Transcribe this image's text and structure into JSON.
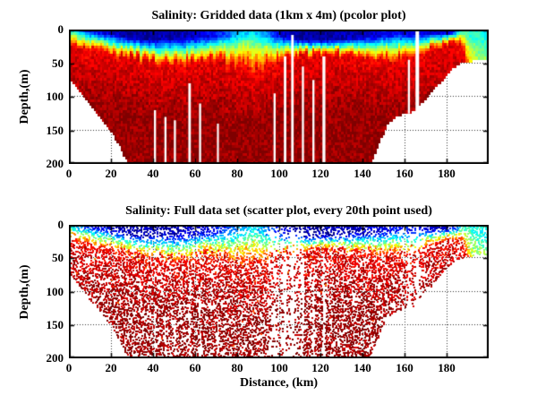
{
  "figure": {
    "background": "#ffffff",
    "axis_color": "#000000",
    "grid_style": "dotted",
    "colormap": "jet",
    "colormap_anchors": [
      "#00008f",
      "#0000ff",
      "#00ffff",
      "#80ff80",
      "#ffff00",
      "#ff0000",
      "#800000"
    ]
  },
  "chart_data": [
    {
      "type": "heatmap",
      "title": "Salinity: Gridded data (1km x 4m) (pcolor plot)",
      "xlabel": "",
      "ylabel": "Depth,(m)",
      "xlim": [
        0,
        200
      ],
      "ylim": [
        0,
        200
      ],
      "y_axis_reversed": true,
      "grid": true,
      "x_ticks": [
        0,
        20,
        40,
        60,
        80,
        100,
        120,
        140,
        160,
        180
      ],
      "y_ticks": [
        0,
        50,
        100,
        150,
        200
      ],
      "cell_width_km": 1,
      "cell_height_m": 4,
      "value_scale": "normalized salinity 0-1 mapped to jet colormap",
      "station_fields": [
        "distance_km",
        "surface_value_norm",
        "mixed_layer_depth_m",
        "halocline_bottom_depth_m",
        "seafloor_depth_m"
      ],
      "grid_stations": [
        [
          0,
          0.4,
          0,
          20,
          70
        ],
        [
          4,
          0.3,
          2,
          24,
          86
        ],
        [
          8,
          0.18,
          3,
          28,
          103
        ],
        [
          12,
          0.12,
          4,
          31,
          119
        ],
        [
          16,
          0.1,
          5,
          33,
          134
        ],
        [
          20,
          0.08,
          7,
          35,
          150
        ],
        [
          24,
          0.06,
          9,
          38,
          170
        ],
        [
          27,
          0.05,
          11,
          40,
          192
        ],
        [
          30,
          0.04,
          13,
          42,
          200
        ],
        [
          35,
          0.04,
          14,
          45,
          200
        ],
        [
          40,
          0.04,
          15,
          47,
          200
        ],
        [
          45,
          0.05,
          14,
          50,
          200
        ],
        [
          50,
          0.05,
          14,
          52,
          200
        ],
        [
          55,
          0.06,
          13,
          50,
          200
        ],
        [
          60,
          0.07,
          12,
          47,
          200
        ],
        [
          65,
          0.1,
          11,
          45,
          200
        ],
        [
          70,
          0.14,
          10,
          47,
          200
        ],
        [
          75,
          0.2,
          9,
          50,
          200
        ],
        [
          80,
          0.27,
          7,
          55,
          200
        ],
        [
          84,
          0.33,
          6,
          58,
          200
        ],
        [
          88,
          0.35,
          6,
          60,
          200
        ],
        [
          92,
          0.3,
          7,
          56,
          200
        ],
        [
          96,
          0.22,
          8,
          50,
          200
        ],
        [
          100,
          0.12,
          10,
          45,
          200
        ],
        [
          104,
          0.07,
          12,
          42,
          200
        ],
        [
          108,
          0.05,
          13,
          40,
          200
        ],
        [
          112,
          0.04,
          15,
          38,
          200
        ],
        [
          116,
          0.04,
          16,
          36,
          200
        ],
        [
          120,
          0.04,
          16,
          35,
          200
        ],
        [
          125,
          0.04,
          15,
          36,
          200
        ],
        [
          130,
          0.05,
          14,
          38,
          200
        ],
        [
          135,
          0.05,
          13,
          40,
          200
        ],
        [
          140,
          0.06,
          12,
          41,
          200
        ],
        [
          144,
          0.08,
          11,
          42,
          195
        ],
        [
          148,
          0.1,
          10,
          44,
          165
        ],
        [
          152,
          0.12,
          9,
          45,
          138
        ],
        [
          156,
          0.14,
          8,
          44,
          128
        ],
        [
          160,
          0.12,
          8,
          42,
          124
        ],
        [
          164,
          0.1,
          8,
          40,
          121
        ],
        [
          168,
          0.1,
          7,
          36,
          108
        ],
        [
          172,
          0.08,
          6,
          30,
          94
        ],
        [
          176,
          0.07,
          5,
          25,
          80
        ],
        [
          180,
          0.06,
          5,
          22,
          64
        ],
        [
          184,
          0.15,
          4,
          20,
          54
        ],
        [
          186,
          0.35,
          3,
          24,
          50
        ],
        [
          188,
          0.45,
          4,
          30,
          48
        ],
        [
          192,
          0.42,
          9,
          90,
          46
        ],
        [
          196,
          0.4,
          12,
          130,
          45
        ],
        [
          200,
          0.38,
          12,
          150,
          44
        ]
      ],
      "missing_column_fields": [
        "distance_km",
        "width_km",
        "top_m",
        "bottom_m"
      ],
      "missing_columns": [
        [
          41,
          1,
          120,
          200
        ],
        [
          46,
          1,
          130,
          200
        ],
        [
          50.5,
          1,
          135,
          200
        ],
        [
          57.5,
          1.2,
          80,
          200
        ],
        [
          62.5,
          1,
          110,
          200
        ],
        [
          71,
          0.9,
          140,
          200
        ],
        [
          98,
          1,
          95,
          200
        ],
        [
          103,
          1.2,
          40,
          200
        ],
        [
          106.5,
          1.2,
          8,
          200
        ],
        [
          111.5,
          1,
          55,
          200
        ],
        [
          116.5,
          1,
          75,
          200
        ],
        [
          121.5,
          1.4,
          40,
          200
        ],
        [
          162,
          1,
          45,
          125
        ],
        [
          166,
          1.7,
          0,
          132
        ]
      ]
    },
    {
      "type": "scatter",
      "title": "Salinity: Full data set (scatter plot, every 20th point used)",
      "xlabel": "Distance, (km)",
      "ylabel": "Depth,(m)",
      "xlim": [
        0,
        200
      ],
      "ylim": [
        0,
        200
      ],
      "y_axis_reversed": true,
      "grid": true,
      "x_ticks": [
        0,
        20,
        40,
        60,
        80,
        100,
        120,
        140,
        160,
        180
      ],
      "y_ticks": [
        0,
        50,
        100,
        150,
        200
      ],
      "subsample_every_nth_point": 20,
      "marker": "square",
      "marker_px": 2,
      "sparse_band_fields": [
        "from_km",
        "to_km",
        "density_factor"
      ],
      "sparse_bands": [
        [
          95,
          112,
          0.5
        ],
        [
          158,
          170,
          0.6
        ]
      ]
    }
  ]
}
